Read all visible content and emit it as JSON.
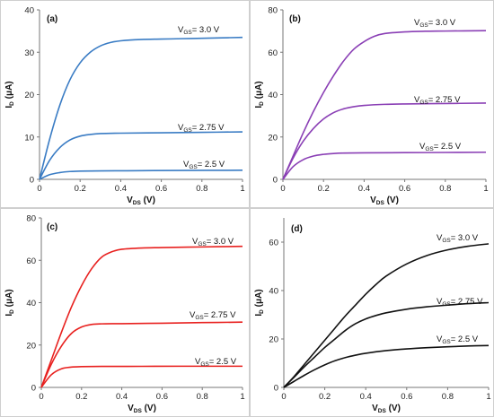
{
  "chart_data": [
    {
      "panel_label": "(a)",
      "type": "line",
      "color": "#3a7cc4",
      "xlabel": {
        "main": "V",
        "sub": "DS",
        "unit": " (V)"
      },
      "ylabel": {
        "main": "I",
        "sub": "D",
        "unit": " (μA)"
      },
      "xlim": [
        0,
        1
      ],
      "ylim": [
        0,
        40
      ],
      "xticks": [
        0,
        0.2,
        0.4,
        0.6,
        0.8,
        1
      ],
      "xtick_labels": [
        "0",
        "0.2",
        "0.4",
        "0.6",
        "0.8",
        "1"
      ],
      "yticks": [
        0,
        10,
        20,
        30,
        40
      ],
      "ytick_labels": [
        "0",
        "10",
        "20",
        "30",
        "40"
      ],
      "series": [
        {
          "label": {
            "main": "V",
            "sub": "GS",
            "rest": "= 3.0 V"
          },
          "points": [
            [
              0,
              0
            ],
            [
              0.05,
              9.5
            ],
            [
              0.1,
              17.5
            ],
            [
              0.15,
              23.5
            ],
            [
              0.2,
              27.5
            ],
            [
              0.25,
              30
            ],
            [
              0.3,
              31.5
            ],
            [
              0.35,
              32.3
            ],
            [
              0.4,
              32.7
            ],
            [
              0.5,
              33
            ],
            [
              0.6,
              33.1
            ],
            [
              0.7,
              33.2
            ],
            [
              0.8,
              33.3
            ],
            [
              0.9,
              33.4
            ],
            [
              1,
              33.5
            ]
          ]
        },
        {
          "label": {
            "main": "V",
            "sub": "GS",
            "rest": "= 2.75 V"
          },
          "points": [
            [
              0,
              0
            ],
            [
              0.05,
              4.5
            ],
            [
              0.1,
              7.5
            ],
            [
              0.15,
              9.3
            ],
            [
              0.2,
              10.2
            ],
            [
              0.25,
              10.6
            ],
            [
              0.3,
              10.8
            ],
            [
              0.4,
              10.9
            ],
            [
              0.6,
              11
            ],
            [
              0.8,
              11.1
            ],
            [
              1,
              11.2
            ]
          ]
        },
        {
          "label": {
            "main": "V",
            "sub": "GS",
            "rest": "= 2.5 V"
          },
          "points": [
            [
              0,
              0
            ],
            [
              0.05,
              1.1
            ],
            [
              0.1,
              1.6
            ],
            [
              0.15,
              1.85
            ],
            [
              0.2,
              1.95
            ],
            [
              0.3,
              2
            ],
            [
              0.5,
              2.05
            ],
            [
              0.7,
              2.1
            ],
            [
              1,
              2.15
            ]
          ]
        }
      ]
    },
    {
      "panel_label": "(b)",
      "type": "line",
      "color": "#8a3fb5",
      "xlabel": {
        "main": "V",
        "sub": "DS",
        "unit": " (V)"
      },
      "ylabel": {
        "main": "I",
        "sub": "D",
        "unit": " (μA)"
      },
      "xlim": [
        0,
        1
      ],
      "ylim": [
        0,
        80
      ],
      "xticks": [
        0,
        0.2,
        0.4,
        0.6,
        0.8,
        1
      ],
      "xtick_labels": [
        "0",
        "0.2",
        "0.4",
        "0.6",
        "0.8",
        "1"
      ],
      "yticks": [
        0,
        20,
        40,
        60,
        80
      ],
      "ytick_labels": [
        "0",
        "20",
        "40",
        "60",
        "80"
      ],
      "series": [
        {
          "label": {
            "main": "V",
            "sub": "GS",
            "rest": "= 3.0 V"
          },
          "points": [
            [
              0,
              0
            ],
            [
              0.05,
              11
            ],
            [
              0.1,
              22
            ],
            [
              0.15,
              32
            ],
            [
              0.2,
              41
            ],
            [
              0.25,
              49
            ],
            [
              0.3,
              56
            ],
            [
              0.35,
              61.5
            ],
            [
              0.4,
              65
            ],
            [
              0.45,
              67.5
            ],
            [
              0.5,
              68.8
            ],
            [
              0.6,
              69.6
            ],
            [
              0.7,
              69.9
            ],
            [
              0.8,
              70
            ],
            [
              1,
              70.2
            ]
          ]
        },
        {
          "label": {
            "main": "V",
            "sub": "GS",
            "rest": "= 2.75 V"
          },
          "points": [
            [
              0,
              0
            ],
            [
              0.05,
              10
            ],
            [
              0.1,
              18
            ],
            [
              0.15,
              24
            ],
            [
              0.2,
              28.5
            ],
            [
              0.25,
              31.5
            ],
            [
              0.3,
              33.3
            ],
            [
              0.35,
              34.3
            ],
            [
              0.4,
              34.9
            ],
            [
              0.5,
              35.4
            ],
            [
              0.6,
              35.6
            ],
            [
              0.8,
              35.8
            ],
            [
              1,
              36
            ]
          ]
        },
        {
          "label": {
            "main": "V",
            "sub": "GS",
            "rest": "= 2.5 V"
          },
          "points": [
            [
              0,
              0
            ],
            [
              0.05,
              6
            ],
            [
              0.1,
              9.3
            ],
            [
              0.15,
              11
            ],
            [
              0.2,
              11.8
            ],
            [
              0.25,
              12.2
            ],
            [
              0.3,
              12.4
            ],
            [
              0.4,
              12.5
            ],
            [
              0.6,
              12.6
            ],
            [
              0.8,
              12.7
            ],
            [
              1,
              12.8
            ]
          ]
        }
      ]
    },
    {
      "panel_label": "(c)",
      "type": "line",
      "color": "#e8211f",
      "xlabel": {
        "main": "V",
        "sub": "DS",
        "unit": " (V)"
      },
      "ylabel": {
        "main": "I",
        "sub": "D",
        "unit": " (μA)"
      },
      "xlim": [
        0,
        1
      ],
      "ylim": [
        0,
        80
      ],
      "xticks": [
        0,
        0.2,
        0.4,
        0.6,
        0.8,
        1
      ],
      "xtick_labels": [
        "0",
        "0.2",
        "0.4",
        "0.6",
        "0.8",
        "1"
      ],
      "yticks": [
        0,
        20,
        40,
        60,
        80
      ],
      "ytick_labels": [
        "0",
        "20",
        "40",
        "60",
        "80"
      ],
      "series": [
        {
          "label": {
            "main": "V",
            "sub": "GS",
            "rest": "= 3.0 V"
          },
          "points": [
            [
              0,
              0
            ],
            [
              0.05,
              13
            ],
            [
              0.1,
              26
            ],
            [
              0.15,
              38
            ],
            [
              0.2,
              48
            ],
            [
              0.25,
              56
            ],
            [
              0.3,
              61.5
            ],
            [
              0.35,
              64
            ],
            [
              0.4,
              65.2
            ],
            [
              0.5,
              65.8
            ],
            [
              0.6,
              66
            ],
            [
              0.8,
              66.3
            ],
            [
              1,
              66.6
            ]
          ]
        },
        {
          "label": {
            "main": "V",
            "sub": "GS",
            "rest": "= 2.75 V"
          },
          "points": [
            [
              0,
              0
            ],
            [
              0.05,
              11
            ],
            [
              0.1,
              19.5
            ],
            [
              0.15,
              25.5
            ],
            [
              0.2,
              28.5
            ],
            [
              0.25,
              29.7
            ],
            [
              0.3,
              30
            ],
            [
              0.4,
              30.1
            ],
            [
              0.6,
              30.3
            ],
            [
              0.8,
              30.6
            ],
            [
              1,
              30.8
            ]
          ]
        },
        {
          "label": {
            "main": "V",
            "sub": "GS",
            "rest": "= 2.5 V"
          },
          "points": [
            [
              0,
              0
            ],
            [
              0.05,
              6
            ],
            [
              0.1,
              8.8
            ],
            [
              0.15,
              9.6
            ],
            [
              0.2,
              9.8
            ],
            [
              0.3,
              9.9
            ],
            [
              0.5,
              9.95
            ],
            [
              0.7,
              10
            ],
            [
              1,
              10
            ]
          ]
        }
      ]
    },
    {
      "panel_label": "(d)",
      "type": "line",
      "color": "#111111",
      "xlabel": {
        "main": "V",
        "sub": "DS",
        "unit": " (V)"
      },
      "ylabel": {
        "main": "I",
        "sub": "D",
        "unit": " (μA)"
      },
      "xlim": [
        0,
        1
      ],
      "ylim": [
        0,
        70
      ],
      "xticks": [
        0,
        0.2,
        0.4,
        0.6,
        0.8,
        1
      ],
      "xtick_labels": [
        "0",
        "0.2",
        "0.4",
        "0.6",
        "0.8",
        "1"
      ],
      "yticks": [
        0,
        20,
        40,
        60
      ],
      "ytick_labels": [
        "0",
        "20",
        "40",
        "60"
      ],
      "series": [
        {
          "label": {
            "main": "V",
            "sub": "GS",
            "rest": "= 3.0 V"
          },
          "points": [
            [
              0,
              0
            ],
            [
              0.05,
              4.5
            ],
            [
              0.1,
              9.5
            ],
            [
              0.15,
              14.5
            ],
            [
              0.2,
              19.5
            ],
            [
              0.25,
              24.5
            ],
            [
              0.3,
              29.5
            ],
            [
              0.35,
              34
            ],
            [
              0.4,
              38.5
            ],
            [
              0.45,
              42.5
            ],
            [
              0.5,
              46
            ],
            [
              0.6,
              51
            ],
            [
              0.7,
              54.5
            ],
            [
              0.8,
              56.8
            ],
            [
              0.9,
              58.3
            ],
            [
              1,
              59.3
            ]
          ]
        },
        {
          "label": {
            "main": "V",
            "sub": "GS",
            "rest": "= 2.75 V"
          },
          "points": [
            [
              0,
              0
            ],
            [
              0.05,
              4.2
            ],
            [
              0.1,
              8.5
            ],
            [
              0.15,
              12.5
            ],
            [
              0.2,
              16.5
            ],
            [
              0.25,
              20
            ],
            [
              0.3,
              23.5
            ],
            [
              0.35,
              26.3
            ],
            [
              0.4,
              28.3
            ],
            [
              0.45,
              29.7
            ],
            [
              0.5,
              30.8
            ],
            [
              0.6,
              32.3
            ],
            [
              0.7,
              33.3
            ],
            [
              0.8,
              34
            ],
            [
              0.9,
              34.6
            ],
            [
              1,
              35
            ]
          ]
        },
        {
          "label": {
            "main": "V",
            "sub": "GS",
            "rest": "= 2.5 V"
          },
          "points": [
            [
              0,
              0
            ],
            [
              0.05,
              2.5
            ],
            [
              0.1,
              5
            ],
            [
              0.15,
              7.3
            ],
            [
              0.2,
              9.3
            ],
            [
              0.25,
              11
            ],
            [
              0.3,
              12.3
            ],
            [
              0.35,
              13.3
            ],
            [
              0.4,
              14.1
            ],
            [
              0.5,
              15.2
            ],
            [
              0.6,
              15.9
            ],
            [
              0.7,
              16.4
            ],
            [
              0.8,
              16.8
            ],
            [
              0.9,
              17.1
            ],
            [
              1,
              17.3
            ]
          ]
        }
      ]
    }
  ]
}
